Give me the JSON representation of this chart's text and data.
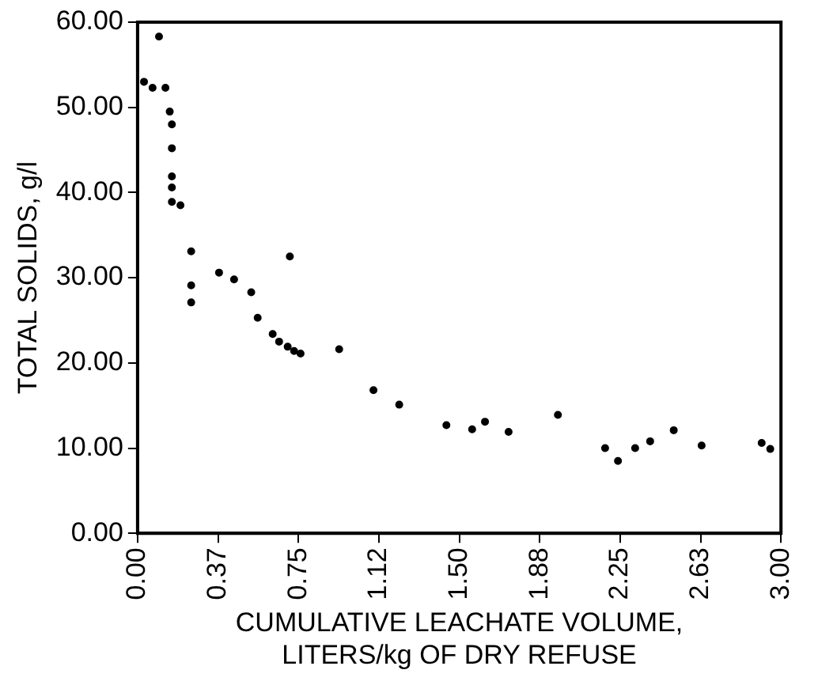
{
  "chart_data": {
    "type": "scatter",
    "xlabel": "CUMULATIVE LEACHATE VOLUME,\nLITERS/kg OF DRY REFUSE",
    "ylabel": "TOTAL SOLIDS, g/l",
    "x": [
      0.03,
      0.07,
      0.1,
      0.13,
      0.15,
      0.16,
      0.16,
      0.16,
      0.16,
      0.16,
      0.2,
      0.25,
      0.25,
      0.25,
      0.38,
      0.45,
      0.53,
      0.56,
      0.63,
      0.66,
      0.7,
      0.73,
      0.76,
      0.71,
      0.94,
      1.1,
      1.22,
      1.44,
      1.56,
      1.62,
      1.73,
      1.96,
      2.18,
      2.24,
      2.32,
      2.39,
      2.5,
      2.63,
      2.91,
      2.95
    ],
    "values": [
      53.0,
      52.3,
      58.3,
      52.3,
      49.5,
      48.0,
      45.2,
      41.9,
      40.6,
      38.9,
      38.5,
      33.1,
      29.1,
      27.1,
      30.6,
      29.8,
      28.3,
      25.3,
      23.4,
      22.5,
      21.9,
      21.4,
      21.1,
      32.5,
      21.6,
      16.8,
      15.1,
      12.7,
      12.2,
      13.1,
      11.9,
      13.9,
      10.0,
      8.5,
      10.0,
      10.8,
      12.1,
      10.3,
      10.6,
      9.9
    ],
    "color": "#000000",
    "marker": "circle",
    "grid": false,
    "legend": false,
    "xlim": [
      0,
      3
    ],
    "xticks": [
      {
        "value": 0,
        "label": "0.00"
      },
      {
        "value": 0.375,
        "label": "0.37"
      },
      {
        "value": 0.75,
        "label": "0.75"
      },
      {
        "value": 1.125,
        "label": "1.12"
      },
      {
        "value": 1.5,
        "label": "1.50"
      },
      {
        "value": 1.875,
        "label": "1.88"
      },
      {
        "value": 2.25,
        "label": "2.25"
      },
      {
        "value": 2.625,
        "label": "2.63"
      },
      {
        "value": 3,
        "label": "3.00"
      }
    ],
    "ylim": [
      0,
      60
    ],
    "yticks": [
      {
        "value": 0,
        "label": "0.00"
      },
      {
        "value": 10,
        "label": "10.00"
      },
      {
        "value": 20,
        "label": "20.00"
      },
      {
        "value": 30,
        "label": "30.00"
      },
      {
        "value": 40,
        "label": "40.00"
      },
      {
        "value": 50,
        "label": "50.00"
      },
      {
        "value": 60,
        "label": "60.00"
      }
    ]
  }
}
